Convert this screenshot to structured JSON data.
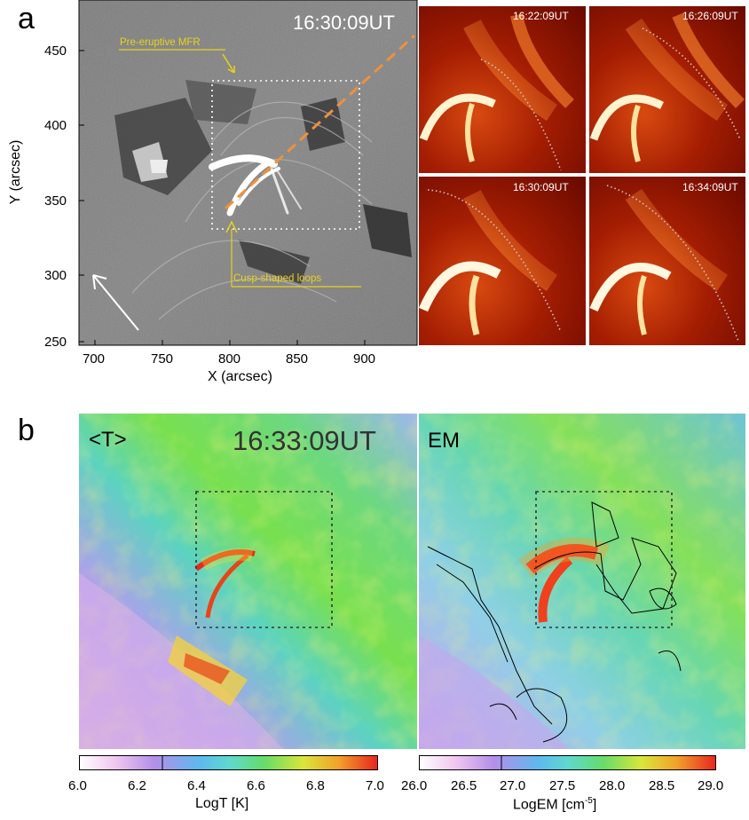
{
  "panel_a": {
    "label": "a",
    "main_timestamp": "16:30:09UT",
    "annotation_mfr": "Pre-eruptive MFR",
    "annotation_cusp": "Cusp-shaped loops",
    "x_ticks": [
      "700",
      "750",
      "800",
      "850",
      "900"
    ],
    "y_ticks": [
      "450",
      "400",
      "350",
      "300",
      "250"
    ],
    "x_title": "X (arcsec)",
    "y_title": "Y (arcsec)",
    "insets": [
      {
        "time": "16:22:09UT"
      },
      {
        "time": "16:26:09UT"
      },
      {
        "time": "16:30:09UT"
      },
      {
        "time": "16:34:09UT"
      }
    ],
    "colors": {
      "annotation": "#e8d21c",
      "fit_line": "#f0913a",
      "inset_base": "#8a1200"
    }
  },
  "panel_b": {
    "label": "b",
    "timestamp": "16:33:09UT",
    "left_label": "<T>",
    "right_label": "EM",
    "left_colorbar": {
      "ticks": [
        "6.0",
        "6.2",
        "6.4",
        "6.6",
        "6.8",
        "7.0"
      ],
      "title": "LogT [K]"
    },
    "right_colorbar": {
      "ticks": [
        "26.0",
        "26.5",
        "27.0",
        "27.5",
        "28.0",
        "28.5",
        "29.0"
      ],
      "title_main": "LogEM [cm",
      "title_sup": "-5",
      "title_end": "]"
    }
  }
}
